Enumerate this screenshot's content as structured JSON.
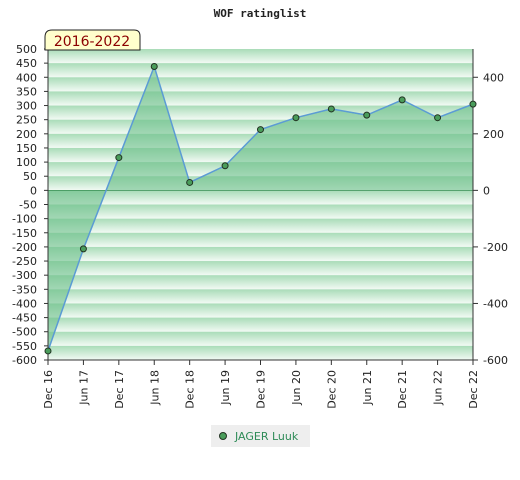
{
  "chart_data": {
    "type": "area",
    "title": "WOF ratinglist",
    "period_badge": "2016-2022",
    "categories": [
      "Dec 16",
      "Jun 17",
      "Dec 17",
      "Jun 18",
      "Dec 18",
      "Jun 19",
      "Dec 19",
      "Jun 20",
      "Dec 20",
      "Jun 21",
      "Dec 21",
      "Jun 22",
      "Dec 22"
    ],
    "series": [
      {
        "name": "JAGER Luuk",
        "values": [
          -568,
          -207,
          116,
          438,
          28,
          87,
          215,
          257,
          288,
          266,
          320,
          257,
          305
        ]
      }
    ],
    "ylim_left": [
      -600,
      500
    ],
    "yticks_left": [
      500,
      450,
      400,
      350,
      300,
      250,
      200,
      150,
      100,
      50,
      0,
      -50,
      -100,
      -150,
      -200,
      -250,
      -300,
      -350,
      -400,
      -450,
      -500,
      -550,
      -600
    ],
    "yticks_right": [
      400,
      200,
      0,
      -200,
      -400,
      -600
    ],
    "grid": true,
    "legend_position": "bottom-center",
    "colors": {
      "line": "#5b9bd5",
      "fill": "#6cc08b",
      "marker": "#4a9d5b",
      "band_dark": "#a9dcb8",
      "band_light": "#f2faf4",
      "badge_bg": "#ffffcc",
      "badge_text": "#8b0000",
      "legend_text": "#2e8b57"
    }
  }
}
